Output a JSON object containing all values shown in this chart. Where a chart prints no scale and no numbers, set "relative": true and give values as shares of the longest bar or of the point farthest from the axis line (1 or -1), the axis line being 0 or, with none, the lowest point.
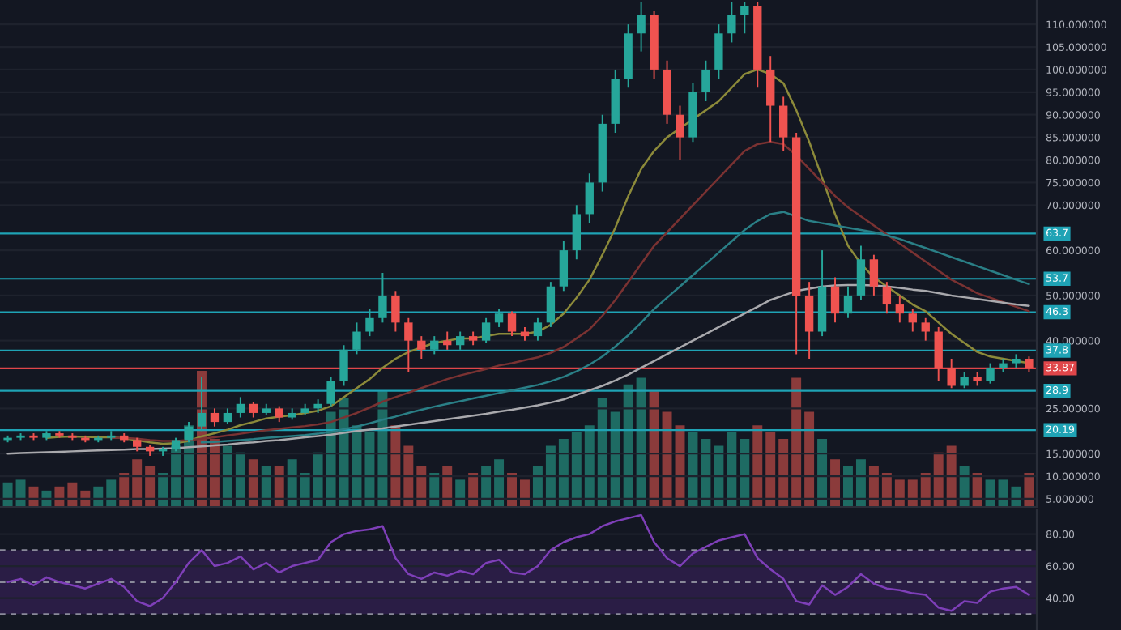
{
  "chart_data": [
    {
      "type": "candlestick",
      "categories": [
        null,
        null,
        null,
        null,
        null,
        null,
        null,
        null,
        null,
        null,
        null,
        null,
        null,
        null,
        null,
        null,
        null,
        null,
        null,
        null,
        null,
        null,
        null,
        null,
        null,
        null,
        null,
        null,
        null,
        null,
        null,
        null,
        null,
        null,
        null,
        null,
        null,
        null,
        null,
        null,
        null,
        null,
        null,
        null,
        null,
        null,
        null,
        null,
        null,
        null,
        null,
        null,
        null,
        null,
        null,
        null,
        null,
        null,
        null,
        null,
        null,
        null,
        null,
        null,
        null,
        null,
        null,
        null,
        null,
        null,
        null,
        null,
        null,
        null,
        null,
        null,
        null,
        null,
        null,
        null
      ],
      "ohlc": [
        [
          18,
          19,
          17.5,
          18.5
        ],
        [
          18.5,
          19.5,
          18,
          19
        ],
        [
          19,
          19.5,
          18,
          18.5
        ],
        [
          18.5,
          20,
          18,
          19.5
        ],
        [
          19.5,
          20,
          18.5,
          19
        ],
        [
          19,
          19.5,
          18,
          18.5
        ],
        [
          18.5,
          19,
          17.5,
          18
        ],
        [
          18,
          19,
          17.5,
          18.5
        ],
        [
          18.5,
          20,
          18,
          19
        ],
        [
          19,
          19.5,
          17.5,
          18
        ],
        [
          18,
          18.5,
          15.5,
          16.5
        ],
        [
          16.5,
          17,
          14.5,
          15.5
        ],
        [
          15.5,
          16.5,
          14.5,
          16
        ],
        [
          16,
          18.5,
          15.5,
          18
        ],
        [
          18,
          22,
          17.5,
          21
        ],
        [
          21,
          32,
          20,
          24
        ],
        [
          24,
          25,
          21,
          22
        ],
        [
          22,
          25,
          21.5,
          24
        ],
        [
          24,
          27.5,
          23,
          26
        ],
        [
          26,
          26.5,
          23,
          24
        ],
        [
          24,
          26,
          23.5,
          25
        ],
        [
          25,
          25.5,
          22,
          23
        ],
        [
          23,
          25,
          22.5,
          24
        ],
        [
          24,
          26,
          23.5,
          25
        ],
        [
          25,
          27,
          24,
          26
        ],
        [
          26,
          32,
          25.5,
          31
        ],
        [
          31,
          39,
          30,
          38
        ],
        [
          38,
          44,
          37,
          42
        ],
        [
          42,
          47,
          41,
          45
        ],
        [
          45,
          55,
          44,
          50
        ],
        [
          50,
          51,
          42,
          44
        ],
        [
          44,
          45,
          33,
          40
        ],
        [
          40,
          41,
          36,
          38
        ],
        [
          38,
          41,
          37,
          40
        ],
        [
          40,
          42,
          38,
          39
        ],
        [
          39,
          42,
          38,
          41
        ],
        [
          41,
          42,
          39,
          40
        ],
        [
          40,
          45,
          39.5,
          44
        ],
        [
          44,
          47,
          43,
          46
        ],
        [
          46,
          46.5,
          41,
          42
        ],
        [
          42,
          43,
          40,
          41
        ],
        [
          41,
          45,
          40,
          44
        ],
        [
          44,
          53,
          43,
          52
        ],
        [
          52,
          62,
          51,
          60
        ],
        [
          60,
          70,
          58,
          68
        ],
        [
          68,
          77,
          66,
          75
        ],
        [
          75,
          90,
          73,
          88
        ],
        [
          88,
          100,
          86,
          98
        ],
        [
          98,
          110,
          96,
          108
        ],
        [
          108,
          115,
          104,
          112
        ],
        [
          112,
          113,
          98,
          100
        ],
        [
          100,
          102,
          88,
          90
        ],
        [
          90,
          92,
          80,
          85
        ],
        [
          85,
          97,
          84,
          95
        ],
        [
          95,
          102,
          93,
          100
        ],
        [
          100,
          110,
          98,
          108
        ],
        [
          108,
          115,
          106,
          112
        ],
        [
          112,
          115,
          108,
          114
        ],
        [
          114,
          115,
          96,
          100
        ],
        [
          100,
          103,
          84,
          92
        ],
        [
          92,
          94,
          82,
          85
        ],
        [
          85,
          86,
          37,
          50
        ],
        [
          50,
          53,
          36,
          42
        ],
        [
          42,
          60,
          41,
          52
        ],
        [
          52,
          54,
          44,
          46
        ],
        [
          46,
          52,
          45,
          50
        ],
        [
          50,
          61,
          49,
          58
        ],
        [
          58,
          59,
          50,
          52
        ],
        [
          52,
          53,
          46,
          48
        ],
        [
          48,
          50,
          44,
          46
        ],
        [
          46,
          47,
          42,
          44
        ],
        [
          44,
          45,
          40,
          42
        ],
        [
          42,
          43,
          31,
          34
        ],
        [
          34,
          36,
          29.5,
          30
        ],
        [
          30,
          33,
          29.5,
          32
        ],
        [
          32,
          33,
          30,
          31
        ],
        [
          31,
          35,
          30.5,
          34
        ],
        [
          34,
          36,
          33,
          35
        ],
        [
          35,
          37,
          34,
          36
        ],
        [
          36,
          36.5,
          33,
          34
        ]
      ],
      "series": [
        {
          "type": "line",
          "color": "#8c8a3a",
          "values": [
            null,
            null,
            null,
            18.5,
            18.7,
            18.8,
            18.7,
            18.6,
            18.6,
            18.4,
            18,
            17.5,
            17.2,
            17.3,
            17.8,
            18.8,
            19.5,
            20.3,
            21.3,
            22,
            22.8,
            23.2,
            23.5,
            24,
            24.5,
            25.5,
            27.5,
            29.5,
            31.5,
            34,
            36,
            37.5,
            38.5,
            39.5,
            40,
            40.5,
            40.5,
            41,
            41.5,
            41.5,
            41.5,
            42,
            43.5,
            46,
            49.5,
            53.5,
            59,
            65,
            72,
            78,
            82,
            85,
            87,
            89,
            91,
            93,
            96,
            99,
            100,
            99,
            97,
            91,
            84,
            76,
            68,
            61,
            57,
            54,
            52,
            50,
            48,
            46.5,
            44,
            41.5,
            39.5,
            37.5,
            36.5,
            36,
            35.5,
            35
          ]
        },
        {
          "type": "line",
          "color": "#7a3232",
          "values": [
            null,
            null,
            null,
            null,
            null,
            null,
            null,
            null,
            18.5,
            18.5,
            18.3,
            18,
            17.8,
            17.8,
            18,
            18.3,
            18.6,
            19,
            19.4,
            19.8,
            20.2,
            20.5,
            20.8,
            21.1,
            21.5,
            22,
            23,
            24,
            25.2,
            26.5,
            27.5,
            28.5,
            29.5,
            30.5,
            31.5,
            32.3,
            33,
            33.7,
            34.5,
            35,
            35.7,
            36.3,
            37.3,
            38.6,
            40.5,
            42.5,
            45.5,
            49,
            53,
            57,
            61,
            64,
            67,
            70,
            73,
            76,
            79,
            82,
            83.5,
            84,
            83.5,
            81,
            78,
            75,
            72,
            69.5,
            67.5,
            65.5,
            63.5,
            61.5,
            59.5,
            57.5,
            55.5,
            53.5,
            52,
            50.5,
            49.5,
            48.5,
            47.5,
            46.5
          ]
        },
        {
          "type": "line",
          "color": "#2a7f86",
          "values": [
            null,
            null,
            null,
            null,
            null,
            null,
            null,
            null,
            null,
            null,
            null,
            null,
            null,
            null,
            null,
            17.5,
            17.6,
            17.8,
            18,
            18.2,
            18.5,
            18.7,
            18.9,
            19.1,
            19.4,
            19.8,
            20.4,
            21,
            21.7,
            22.5,
            23.2,
            24,
            24.7,
            25.4,
            26,
            26.6,
            27.2,
            27.8,
            28.4,
            29,
            29.6,
            30.2,
            31,
            32,
            33.2,
            34.7,
            36.5,
            38.7,
            41.2,
            44,
            47,
            49.5,
            52,
            54.5,
            57,
            59.5,
            62,
            64.5,
            66.5,
            68,
            68.5,
            67.5,
            66.5,
            66,
            65.5,
            65,
            64.5,
            64,
            63.3,
            62.5,
            61.5,
            60.5,
            59.5,
            58.5,
            57.5,
            56.5,
            55.5,
            54.5,
            53.5,
            52.5
          ]
        },
        {
          "type": "line",
          "color": "#a9a9ad",
          "values": [
            15,
            15.1,
            15.2,
            15.3,
            15.4,
            15.5,
            15.6,
            15.7,
            15.8,
            15.9,
            16,
            16,
            16.1,
            16.2,
            16.4,
            16.6,
            16.8,
            17,
            17.3,
            17.5,
            17.8,
            18,
            18.3,
            18.6,
            18.9,
            19.2,
            19.6,
            20,
            20.3,
            20.6,
            21,
            21.4,
            21.8,
            22.2,
            22.6,
            23,
            23.4,
            23.8,
            24.3,
            24.7,
            25.2,
            25.7,
            26.3,
            27,
            28,
            29,
            30,
            31.2,
            32.5,
            34,
            35.5,
            37,
            38.5,
            40,
            41.5,
            43,
            44.5,
            46,
            47.5,
            49,
            50,
            51,
            51.5,
            52,
            52.2,
            52.3,
            52.3,
            52.2,
            52,
            51.7,
            51.3,
            51,
            50.5,
            50,
            49.6,
            49.2,
            48.8,
            48.4,
            48,
            47.7
          ]
        }
      ],
      "ylim": [
        3.2,
        115.4
      ],
      "yticks": [
        {
          "value": 5,
          "label": "5.000000"
        },
        {
          "value": 10,
          "label": "10.000000"
        },
        {
          "value": 15,
          "label": "15.000000"
        },
        {
          "value": 25,
          "label": "25.000000"
        },
        {
          "value": 40,
          "label": "40.000000"
        },
        {
          "value": 50,
          "label": "50.000000"
        },
        {
          "value": 60,
          "label": "60.000000"
        },
        {
          "value": 70,
          "label": "70.000000"
        },
        {
          "value": 75,
          "label": "75.000000"
        },
        {
          "value": 80,
          "label": "80.000000"
        },
        {
          "value": 85,
          "label": "85.000000"
        },
        {
          "value": 90,
          "label": "90.000000"
        },
        {
          "value": 95,
          "label": "95.000000"
        },
        {
          "value": 100,
          "label": "100.000000"
        },
        {
          "value": 105,
          "label": "105.000000"
        },
        {
          "value": 110,
          "label": "110.000000"
        }
      ],
      "ref_lines": [
        {
          "axis": "y",
          "value": 63.7,
          "label": "63.7",
          "color": "#1fa3b5"
        },
        {
          "axis": "y",
          "value": 53.7,
          "label": "53.7",
          "color": "#1fa3b5"
        },
        {
          "axis": "y",
          "value": 46.3,
          "label": "46.3",
          "color": "#1fa3b5"
        },
        {
          "axis": "y",
          "value": 37.8,
          "label": "37.8",
          "color": "#1fa3b5"
        },
        {
          "axis": "y",
          "value": 33.87,
          "label": "33.87",
          "color": "#e0464a"
        },
        {
          "axis": "y",
          "value": 28.9,
          "label": "28.9",
          "color": "#1fa3b5"
        },
        {
          "axis": "y",
          "value": 20.19,
          "label": "20.19",
          "color": "#1fa3b5"
        }
      ],
      "grid": "y",
      "tick_labels": "y",
      "legend": false
    },
    {
      "type": "bar",
      "relative": true,
      "categories": [
        null,
        null,
        null,
        null,
        null,
        null,
        null,
        null,
        null,
        null,
        null,
        null,
        null,
        null,
        null,
        null,
        null,
        null,
        null,
        null,
        null,
        null,
        null,
        null,
        null,
        null,
        null,
        null,
        null,
        null,
        null,
        null,
        null,
        null,
        null,
        null,
        null,
        null,
        null,
        null,
        null,
        null,
        null,
        null,
        null,
        null,
        null,
        null,
        null,
        null,
        null,
        null,
        null,
        null,
        null,
        null,
        null,
        null,
        null,
        null,
        null,
        null,
        null,
        null,
        null,
        null,
        null,
        null,
        null,
        null,
        null,
        null,
        null,
        null,
        null,
        null,
        null,
        null,
        null,
        null
      ],
      "values": [
        0.18,
        0.2,
        0.15,
        0.12,
        0.15,
        0.18,
        0.12,
        0.15,
        0.2,
        0.25,
        0.35,
        0.3,
        0.25,
        0.45,
        0.6,
        1.0,
        0.5,
        0.45,
        0.4,
        0.35,
        0.3,
        0.3,
        0.35,
        0.25,
        0.4,
        0.7,
        0.8,
        0.6,
        0.55,
        0.85,
        0.6,
        0.45,
        0.3,
        0.25,
        0.3,
        0.2,
        0.25,
        0.3,
        0.35,
        0.25,
        0.2,
        0.3,
        0.45,
        0.5,
        0.55,
        0.6,
        0.8,
        0.7,
        0.9,
        0.95,
        0.85,
        0.7,
        0.6,
        0.55,
        0.5,
        0.45,
        0.55,
        0.5,
        0.6,
        0.55,
        0.5,
        0.95,
        0.7,
        0.5,
        0.35,
        0.3,
        0.35,
        0.3,
        0.25,
        0.2,
        0.2,
        0.25,
        0.4,
        0.45,
        0.3,
        0.25,
        0.2,
        0.2,
        0.15,
        0.25
      ],
      "colors": [
        "#1e6b63",
        "#1e6b63",
        "#8b3b3b",
        "#1e6b63",
        "#8b3b3b",
        "#8b3b3b",
        "#8b3b3b",
        "#1e6b63",
        "#1e6b63",
        "#8b3b3b",
        "#8b3b3b",
        "#8b3b3b",
        "#1e6b63",
        "#1e6b63",
        "#1e6b63",
        "#8b3b3b",
        "#8b3b3b",
        "#1e6b63",
        "#1e6b63",
        "#8b3b3b",
        "#1e6b63",
        "#8b3b3b",
        "#1e6b63",
        "#1e6b63",
        "#1e6b63",
        "#1e6b63",
        "#1e6b63",
        "#1e6b63",
        "#1e6b63",
        "#1e6b63",
        "#8b3b3b",
        "#8b3b3b",
        "#8b3b3b",
        "#1e6b63",
        "#8b3b3b",
        "#1e6b63",
        "#8b3b3b",
        "#1e6b63",
        "#1e6b63",
        "#8b3b3b",
        "#8b3b3b",
        "#1e6b63",
        "#1e6b63",
        "#1e6b63",
        "#1e6b63",
        "#1e6b63",
        "#1e6b63",
        "#1e6b63",
        "#1e6b63",
        "#1e6b63",
        "#8b3b3b",
        "#8b3b3b",
        "#8b3b3b",
        "#1e6b63",
        "#1e6b63",
        "#1e6b63",
        "#1e6b63",
        "#1e6b63",
        "#8b3b3b",
        "#8b3b3b",
        "#8b3b3b",
        "#8b3b3b",
        "#8b3b3b",
        "#1e6b63",
        "#8b3b3b",
        "#1e6b63",
        "#1e6b63",
        "#8b3b3b",
        "#8b3b3b",
        "#8b3b3b",
        "#8b3b3b",
        "#8b3b3b",
        "#8b3b3b",
        "#8b3b3b",
        "#1e6b63",
        "#8b3b3b",
        "#1e6b63",
        "#1e6b63",
        "#1e6b63",
        "#8b3b3b"
      ],
      "tick_labels": false
    },
    {
      "type": "line",
      "categories": [
        null,
        null,
        null,
        null,
        null,
        null,
        null,
        null,
        null,
        null,
        null,
        null,
        null,
        null,
        null,
        null,
        null,
        null,
        null,
        null,
        null,
        null,
        null,
        null,
        null,
        null,
        null,
        null,
        null,
        null,
        null,
        null,
        null,
        null,
        null,
        null,
        null,
        null,
        null,
        null,
        null,
        null,
        null,
        null,
        null,
        null,
        null,
        null,
        null,
        null,
        null,
        null,
        null,
        null,
        null,
        null,
        null,
        null,
        null,
        null,
        null,
        null,
        null,
        null,
        null,
        null,
        null,
        null,
        null,
        null,
        null,
        null,
        null,
        null,
        null,
        null,
        null,
        null,
        null,
        null
      ],
      "series": [
        {
          "color": "#7e3fb8",
          "values": [
            50,
            52,
            48,
            53,
            50,
            48,
            46,
            49,
            52,
            47,
            38,
            35,
            40,
            50,
            62,
            70,
            60,
            62,
            66,
            58,
            62,
            56,
            60,
            62,
            64,
            75,
            80,
            82,
            83,
            85,
            65,
            55,
            52,
            56,
            54,
            57,
            55,
            62,
            64,
            56,
            55,
            60,
            70,
            75,
            78,
            80,
            85,
            88,
            90,
            92,
            75,
            65,
            60,
            68,
            72,
            76,
            78,
            80,
            65,
            58,
            52,
            38,
            36,
            48,
            42,
            47,
            55,
            49,
            46,
            45,
            43,
            42,
            34,
            32,
            38,
            37,
            44,
            46,
            47,
            42
          ]
        }
      ],
      "ylim": [
        20,
        95
      ],
      "yticks": [
        {
          "value": 40,
          "label": "40.00"
        },
        {
          "value": 60,
          "label": "60.00"
        },
        {
          "value": 80,
          "label": "80.00"
        }
      ],
      "ref_lines": [
        {
          "axis": "y",
          "value": 70,
          "color": "#8a8a9a",
          "line_style": "dashed"
        },
        {
          "axis": "y",
          "value": 50,
          "color": "#8a8a9a",
          "line_style": "dashed"
        },
        {
          "axis": "y",
          "value": 30,
          "color": "#8a8a9a",
          "line_style": "dashed"
        }
      ],
      "bands": [
        {
          "axis": "y",
          "from": 30,
          "to": 70,
          "color": "#2a1d45"
        }
      ],
      "tick_labels": "y",
      "grid": "y",
      "legend": false
    }
  ]
}
